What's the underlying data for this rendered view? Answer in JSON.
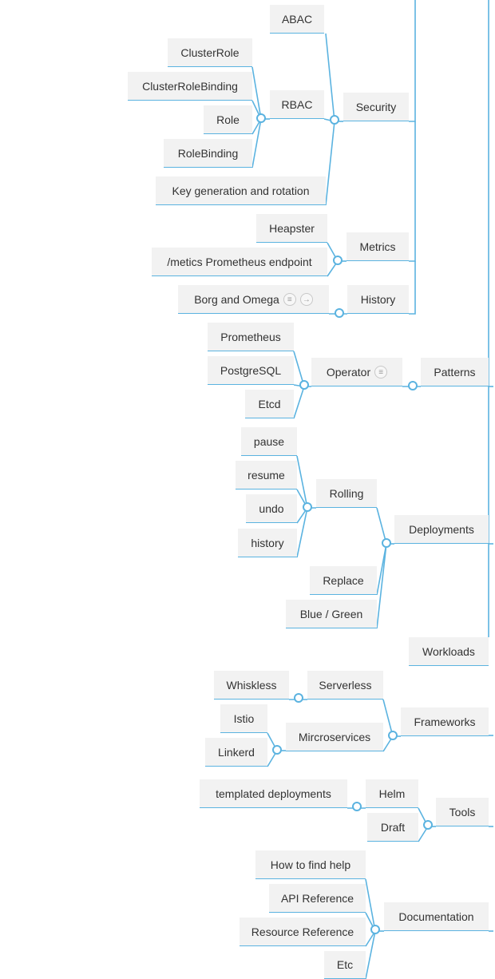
{
  "colors": {
    "line": "#5bb3e0",
    "node_bg": "#f2f2f2",
    "text": "#333333"
  },
  "nodes": {
    "security": "Security",
    "abac": "ABAC",
    "rbac": "RBAC",
    "clusterrole": "ClusterRole",
    "clusterrolebinding": "ClusterRoleBinding",
    "role": "Role",
    "rolebinding": "RoleBinding",
    "keygen": "Key generation and rotation",
    "metrics": "Metrics",
    "heapster": "Heapster",
    "metrics_endpoint": "/metics Prometheus endpoint",
    "history_topic": "History",
    "borg": "Borg and Omega",
    "patterns": "Patterns",
    "operator": "Operator",
    "prometheus": "Prometheus",
    "postgresql": "PostgreSQL",
    "etcd": "Etcd",
    "deployments": "Deployments",
    "rolling": "Rolling",
    "pause": "pause",
    "resume": "resume",
    "undo": "undo",
    "history_cmd": "history",
    "replace": "Replace",
    "bluegreen": "Blue / Green",
    "workloads": "Workloads",
    "frameworks": "Frameworks",
    "serverless": "Serverless",
    "whiskless": "Whiskless",
    "microservices": "Mircroservices",
    "istio": "Istio",
    "linkerd": "Linkerd",
    "tools": "Tools",
    "helm": "Helm",
    "templated": "templated deployments",
    "draft": "Draft",
    "documentation": "Documentation",
    "howto": "How to find help",
    "apiref": "API Reference",
    "resref": "Resource Reference",
    "etc": "Etc"
  },
  "icons": {
    "borg": [
      "notes-icon",
      "arrow-right-icon"
    ],
    "operator": [
      "notes-icon"
    ]
  }
}
